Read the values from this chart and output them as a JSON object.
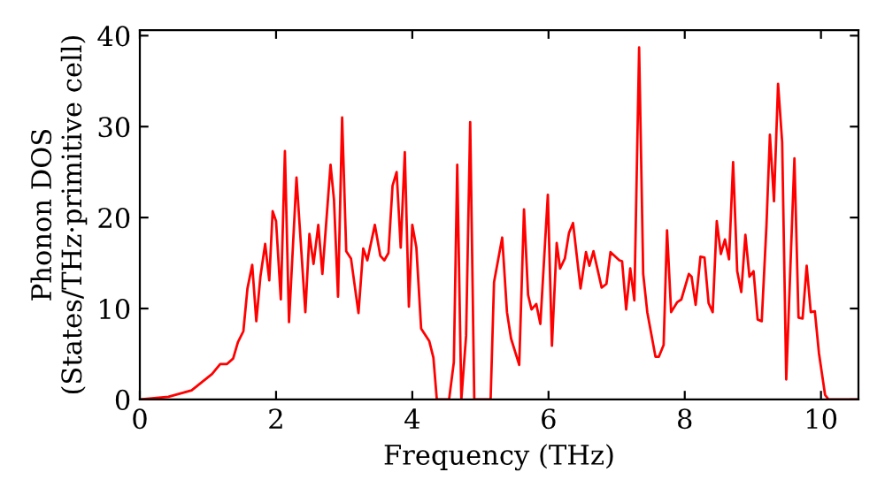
{
  "chart_data": {
    "type": "line",
    "xlabel": "Frequency (THz)",
    "ylabel": "Phonon DOS\n(States/THz·primitive cell)",
    "xlim": [
      0,
      10.55
    ],
    "ylim": [
      0,
      40.6
    ],
    "xticks": [
      0,
      2,
      4,
      6,
      8,
      10
    ],
    "yticks": [
      0,
      10,
      20,
      30,
      40
    ],
    "grid": false,
    "legend": false,
    "marker": "none",
    "line_style": "solid",
    "series": [
      {
        "color": "#ff0000",
        "x": [
          0,
          0.42,
          0.76,
          1.06,
          1.18,
          1.28,
          1.37,
          1.44,
          1.52,
          1.58,
          1.65,
          1.71,
          1.77,
          1.84,
          1.9,
          1.95,
          2.0,
          2.07,
          2.13,
          2.19,
          2.3,
          2.43,
          2.49,
          2.55,
          2.62,
          2.68,
          2.8,
          2.85,
          2.91,
          2.97,
          3.03,
          3.1,
          3.21,
          3.28,
          3.34,
          3.45,
          3.53,
          3.59,
          3.65,
          3.71,
          3.77,
          3.83,
          3.89,
          3.95,
          4.0,
          4.06,
          4.13,
          4.25,
          4.31,
          4.36,
          4.54,
          4.61,
          4.66,
          4.72,
          4.79,
          4.85,
          4.91,
          5.15,
          5.2,
          5.32,
          5.39,
          5.45,
          5.57,
          5.64,
          5.7,
          5.75,
          5.82,
          5.88,
          5.99,
          6.05,
          6.12,
          6.17,
          6.24,
          6.3,
          6.36,
          6.47,
          6.55,
          6.6,
          6.66,
          6.78,
          6.85,
          6.91,
          7.04,
          7.08,
          7.14,
          7.2,
          7.26,
          7.33,
          7.39,
          7.45,
          7.57,
          7.62,
          7.69,
          7.74,
          7.8,
          7.89,
          7.95,
          8.06,
          8.1,
          8.16,
          8.23,
          8.29,
          8.35,
          8.41,
          8.47,
          8.53,
          8.59,
          8.65,
          8.71,
          8.77,
          8.83,
          8.89,
          8.95,
          9.01,
          9.07,
          9.13,
          9.2,
          9.25,
          9.31,
          9.37,
          9.43,
          9.49,
          9.61,
          9.67,
          9.73,
          9.79,
          9.85,
          9.91,
          9.97,
          10.06,
          10.11,
          10.55
        ],
        "values": [
          0,
          0.3,
          1.0,
          2.8,
          3.9,
          3.9,
          4.5,
          6.3,
          7.5,
          12.2,
          14.8,
          8.6,
          13.5,
          17.1,
          13.1,
          20.7,
          19.6,
          11.0,
          27.3,
          8.5,
          24.4,
          9.6,
          18.2,
          14.9,
          19.2,
          13.8,
          25.8,
          22.0,
          11.3,
          31.0,
          16.3,
          15.5,
          9.5,
          16.6,
          15.3,
          19.2,
          15.8,
          15.3,
          16.1,
          23.5,
          25.0,
          16.7,
          27.2,
          10.2,
          19.2,
          16.7,
          7.8,
          6.4,
          4.6,
          0,
          0,
          4.1,
          25.8,
          0,
          7.0,
          30.5,
          0,
          0,
          12.9,
          17.8,
          9.6,
          6.7,
          3.8,
          20.9,
          11.5,
          9.9,
          10.5,
          8.3,
          22.5,
          5.9,
          17.2,
          14.4,
          15.5,
          18.3,
          19.4,
          12.2,
          16.2,
          14.7,
          16.3,
          12.3,
          12.7,
          16.2,
          15.3,
          15.2,
          9.9,
          14.4,
          10.9,
          38.7,
          13.8,
          9.6,
          4.7,
          4.7,
          6.0,
          18.6,
          9.6,
          10.7,
          11.0,
          13.8,
          13.5,
          10.4,
          15.7,
          15.6,
          10.6,
          9.6,
          19.6,
          16.0,
          17.6,
          15.4,
          26.1,
          14.1,
          11.8,
          18.1,
          13.5,
          14.1,
          8.8,
          8.6,
          19.2,
          29.1,
          21.8,
          34.7,
          28.3,
          2.2,
          26.5,
          9.0,
          8.9,
          14.7,
          9.6,
          9.7,
          5.1,
          0.5,
          0,
          0
        ]
      }
    ]
  }
}
